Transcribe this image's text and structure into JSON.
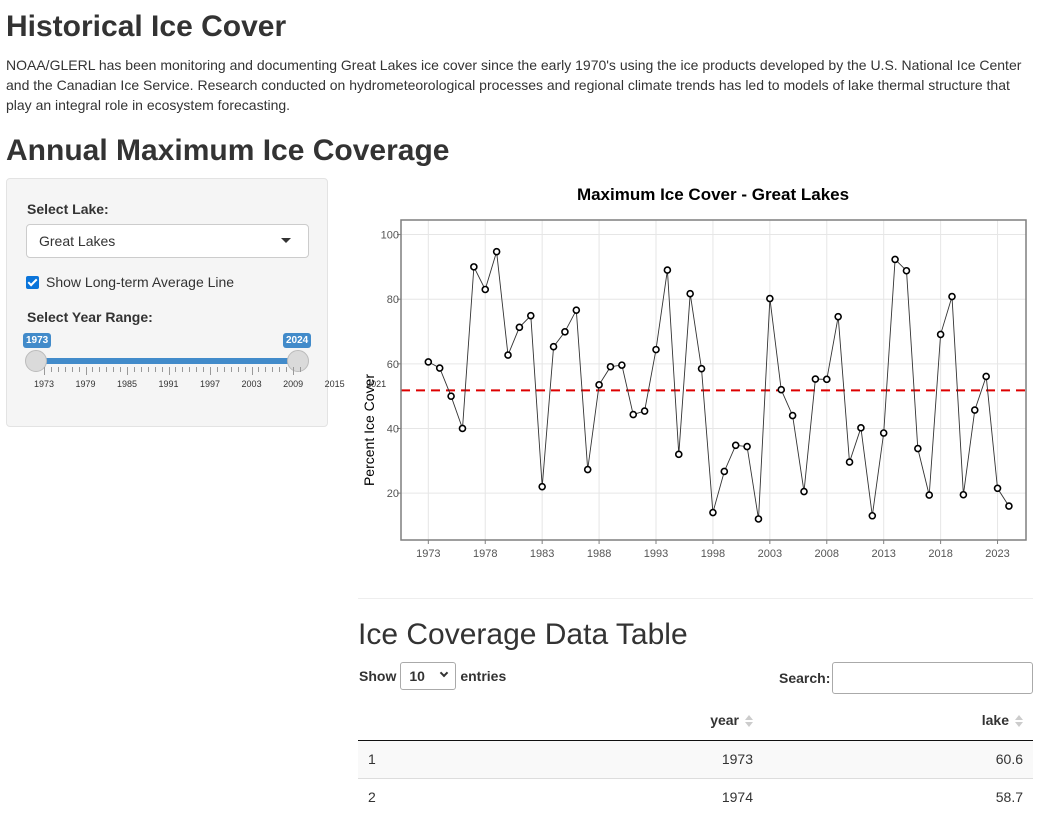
{
  "page": {
    "title": "Historical Ice Cover",
    "intro": "NOAA/GLERL has been monitoring and documenting Great Lakes ice cover since the early 1970's using the ice products developed by the U.S. National Ice Center and the Canadian Ice Service. Research conducted on hydrometeorological processes and regional climate trends has led to models of lake thermal structure that play an integral role in ecosystem forecasting.",
    "section_title": "Annual Maximum Ice Coverage"
  },
  "sidebar": {
    "select_lake_label": "Select Lake:",
    "selected_lake": "Great Lakes",
    "show_average_label": "Show Long-term Average Line",
    "show_average_checked": true,
    "year_range_label": "Select Year Range:",
    "range_min_value": "1973",
    "range_max_value": "2024",
    "tick_labels": [
      "1973",
      "1979",
      "1985",
      "1991",
      "1997",
      "2003",
      "2009",
      "2015",
      "2021"
    ]
  },
  "chart_data": {
    "type": "line",
    "title": "Maximum Ice Cover -  Great Lakes",
    "xlabel": "",
    "ylabel": "Percent Ice Cover",
    "x_tick_labels": [
      "1973",
      "1978",
      "1983",
      "1988",
      "1993",
      "1998",
      "2003",
      "2008",
      "2013",
      "2018",
      "2023"
    ],
    "y_tick_labels": [
      "20",
      "40",
      "60",
      "80",
      "100"
    ],
    "xlim": [
      1970.6,
      2025.5
    ],
    "ylim": [
      5.5,
      104.5
    ],
    "grid": true,
    "average_line": 51.8,
    "series": [
      {
        "x": [
          1973,
          1974,
          1975,
          1976,
          1977,
          1978,
          1979,
          1980,
          1981,
          1982,
          1983,
          1984,
          1985,
          1986,
          1987,
          1988,
          1989,
          1990,
          1991,
          1992,
          1993,
          1994,
          1995,
          1996,
          1997,
          1998,
          1999,
          2000,
          2001,
          2002,
          2003,
          2004,
          2005,
          2006,
          2007,
          2008,
          2009,
          2010,
          2011,
          2012,
          2013,
          2014,
          2015,
          2016,
          2017,
          2018,
          2019,
          2020,
          2021,
          2022,
          2023,
          2024
        ],
        "y": [
          60.6,
          58.7,
          50.0,
          40.0,
          90.0,
          83.0,
          94.7,
          62.7,
          71.3,
          74.9,
          22.0,
          65.3,
          69.9,
          76.6,
          27.3,
          53.5,
          59.1,
          59.6,
          44.3,
          45.4,
          64.4,
          89.0,
          32.0,
          81.7,
          58.5,
          14.0,
          26.7,
          34.8,
          34.4,
          12.0,
          80.2,
          52.0,
          44.0,
          20.5,
          55.3,
          55.2,
          74.6,
          29.6,
          40.2,
          13.0,
          38.6,
          92.3,
          88.8,
          33.8,
          19.4,
          69.1,
          80.8,
          19.5,
          45.7,
          56.1,
          21.5,
          16.0
        ]
      }
    ],
    "colors": {
      "line": "#333333",
      "average_line": "#dd0000"
    }
  },
  "table_section": {
    "title": "Ice Coverage Data Table",
    "show_label": "Show",
    "entries_value": "10",
    "entries_label": "entries",
    "search_label": "Search:",
    "search_value": "",
    "columns": [
      "",
      "year",
      "lake"
    ],
    "rows": [
      [
        "1",
        "1973",
        "60.6"
      ],
      [
        "2",
        "1974",
        "58.7"
      ]
    ]
  }
}
